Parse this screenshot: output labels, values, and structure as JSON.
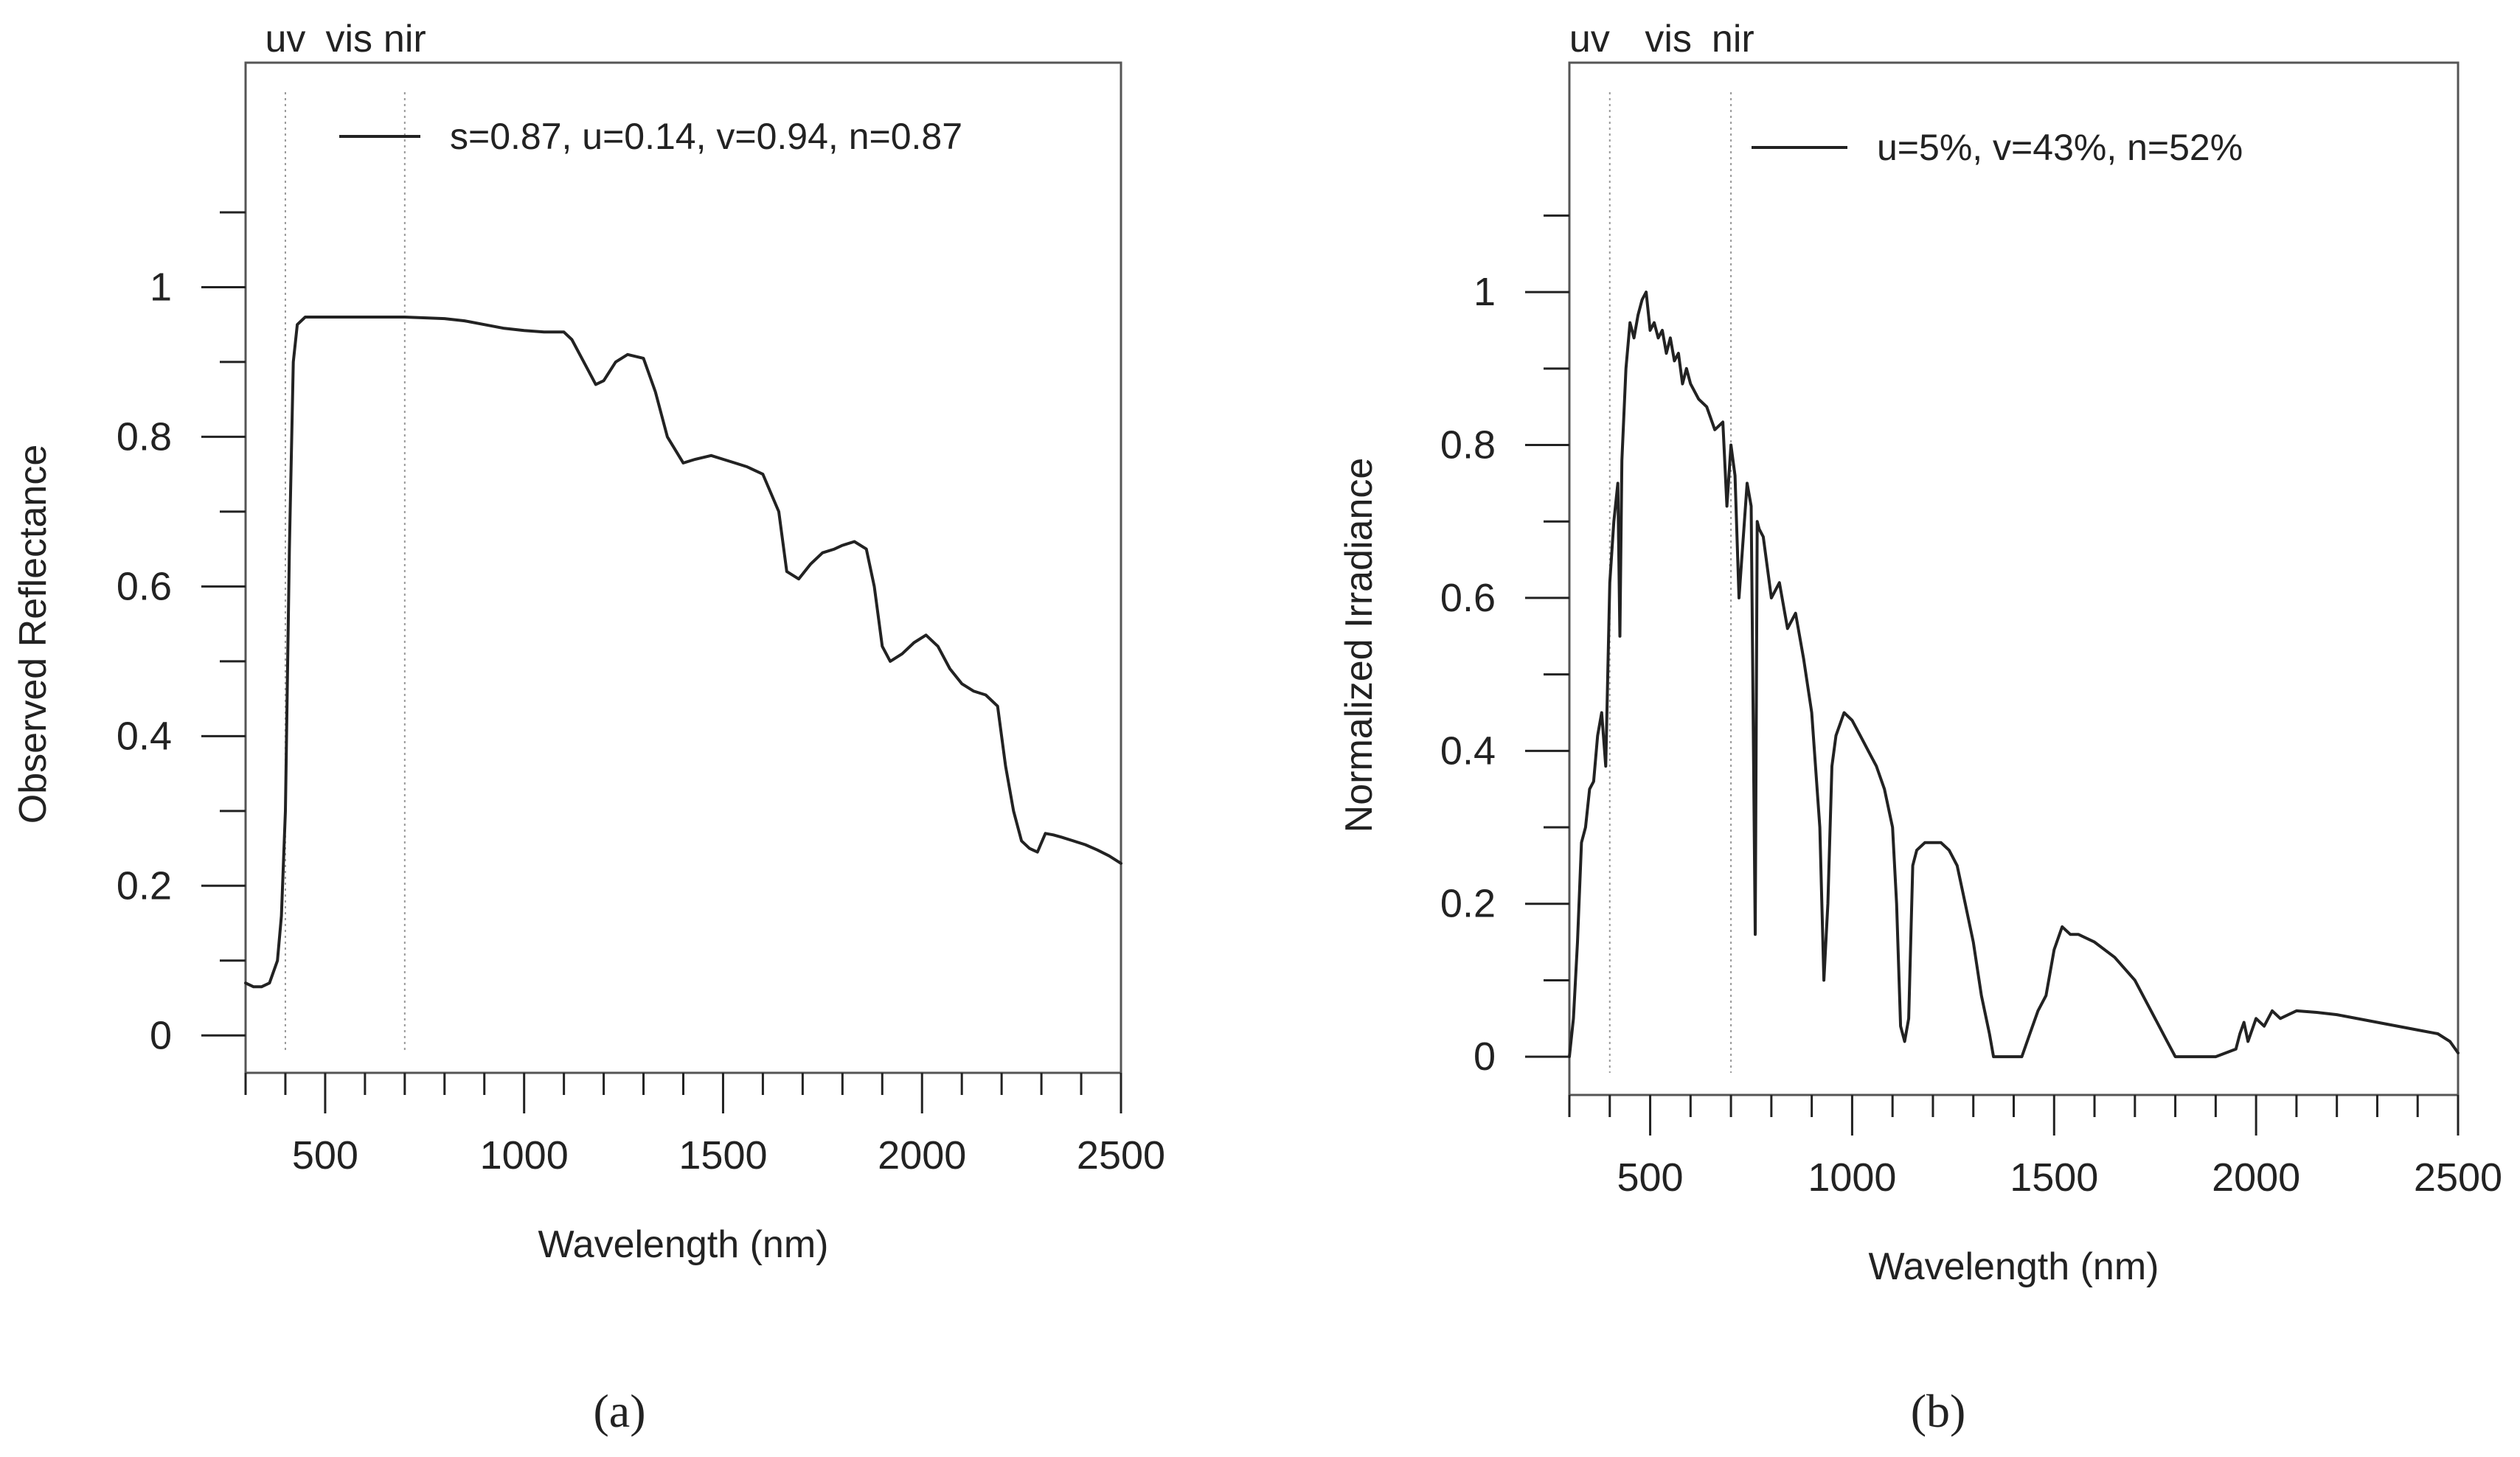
{
  "figure": {
    "panel_a_caption": "(a)",
    "panel_b_caption": "(b)",
    "accent_color": "#222222",
    "band_line_color": "#999999"
  },
  "chart_data": [
    {
      "type": "line",
      "id": "panel-a",
      "title": "",
      "xlabel": "Wavelength (nm)",
      "ylabel": "Observed Reflectance",
      "xlim": [
        300,
        2500
      ],
      "ylim": [
        -0.05,
        1.3
      ],
      "x_ticks": [
        500,
        1000,
        1500,
        2000,
        2500
      ],
      "y_ticks": [
        0,
        0.2,
        0.4,
        0.6,
        0.8,
        1
      ],
      "x_tick_labels": [
        "500",
        "1000",
        "1500",
        "2000",
        "2500"
      ],
      "y_tick_labels": [
        "0",
        "0.2",
        "0.4",
        "0.6",
        "0.8",
        "1"
      ],
      "x_minor_step": 100,
      "y_minor_step": 0.1,
      "bands": [
        {
          "label": "uv",
          "x": 400
        },
        {
          "label": "vis",
          "x": 560
        },
        {
          "label": "nir",
          "x": 700
        }
      ],
      "band_lines": [
        400,
        700
      ],
      "legend": "s=0.87, u=0.14, v=0.94, n=0.87",
      "series": [
        {
          "name": "s=0.87, u=0.14, v=0.94, n=0.87",
          "x": [
            300,
            320,
            340,
            360,
            380,
            390,
            400,
            410,
            420,
            430,
            450,
            500,
            600,
            700,
            800,
            850,
            900,
            950,
            1000,
            1050,
            1100,
            1120,
            1150,
            1180,
            1200,
            1230,
            1260,
            1300,
            1330,
            1360,
            1400,
            1430,
            1470,
            1500,
            1530,
            1560,
            1600,
            1640,
            1660,
            1690,
            1720,
            1750,
            1780,
            1800,
            1830,
            1860,
            1880,
            1900,
            1920,
            1950,
            1980,
            2010,
            2040,
            2070,
            2100,
            2130,
            2160,
            2190,
            2210,
            2230,
            2250,
            2270,
            2290,
            2310,
            2330,
            2350,
            2380,
            2410,
            2440,
            2470,
            2500
          ],
          "y": [
            0.07,
            0.065,
            0.065,
            0.07,
            0.1,
            0.16,
            0.3,
            0.65,
            0.9,
            0.95,
            0.96,
            0.96,
            0.96,
            0.96,
            0.958,
            0.955,
            0.95,
            0.945,
            0.942,
            0.94,
            0.94,
            0.93,
            0.9,
            0.87,
            0.875,
            0.9,
            0.91,
            0.905,
            0.86,
            0.8,
            0.765,
            0.77,
            0.775,
            0.77,
            0.765,
            0.76,
            0.75,
            0.7,
            0.62,
            0.61,
            0.63,
            0.645,
            0.65,
            0.655,
            0.66,
            0.65,
            0.6,
            0.52,
            0.5,
            0.51,
            0.525,
            0.535,
            0.52,
            0.49,
            0.47,
            0.46,
            0.455,
            0.44,
            0.36,
            0.3,
            0.26,
            0.25,
            0.245,
            0.27,
            0.268,
            0.265,
            0.26,
            0.255,
            0.248,
            0.24,
            0.23
          ]
        }
      ]
    },
    {
      "type": "line",
      "id": "panel-b",
      "title": "",
      "xlabel": "Wavelength (nm)",
      "ylabel": "Normalized Irradiance",
      "xlim": [
        300,
        2500
      ],
      "ylim": [
        -0.05,
        1.3
      ],
      "x_ticks": [
        500,
        1000,
        1500,
        2000,
        2500
      ],
      "y_ticks": [
        0,
        0.2,
        0.4,
        0.6,
        0.8,
        1
      ],
      "x_tick_labels": [
        "500",
        "1000",
        "1500",
        "2000",
        "2500"
      ],
      "y_tick_labels": [
        "0",
        "0.2",
        "0.4",
        "0.6",
        "0.8",
        "1"
      ],
      "x_minor_step": 100,
      "y_minor_step": 0.1,
      "bands": [
        {
          "label": "uv",
          "x": 350
        },
        {
          "label": "vis",
          "x": 545
        },
        {
          "label": "nir",
          "x": 705
        }
      ],
      "band_lines": [
        400,
        700
      ],
      "legend": "u=5%, v=43%, n=52%",
      "series": [
        {
          "name": "u=5%, v=43%, n=52%",
          "x": [
            300,
            310,
            320,
            330,
            340,
            350,
            360,
            370,
            380,
            390,
            400,
            410,
            420,
            425,
            430,
            440,
            450,
            460,
            470,
            480,
            490,
            500,
            510,
            520,
            530,
            540,
            550,
            560,
            570,
            580,
            590,
            600,
            620,
            640,
            660,
            680,
            690,
            700,
            710,
            720,
            740,
            750,
            760,
            765,
            770,
            780,
            800,
            820,
            840,
            860,
            880,
            900,
            920,
            930,
            940,
            950,
            960,
            980,
            1000,
            1020,
            1040,
            1060,
            1080,
            1100,
            1110,
            1120,
            1130,
            1140,
            1150,
            1160,
            1180,
            1200,
            1220,
            1240,
            1260,
            1280,
            1300,
            1320,
            1340,
            1350,
            1360,
            1380,
            1400,
            1420,
            1440,
            1460,
            1480,
            1500,
            1520,
            1540,
            1560,
            1600,
            1650,
            1700,
            1750,
            1780,
            1800,
            1820,
            1850,
            1900,
            1950,
            1960,
            1970,
            1980,
            2000,
            2020,
            2040,
            2060,
            2080,
            2100,
            2150,
            2200,
            2300,
            2400,
            2450,
            2480,
            2500
          ],
          "y": [
            0.0,
            0.05,
            0.15,
            0.28,
            0.3,
            0.35,
            0.36,
            0.42,
            0.45,
            0.38,
            0.62,
            0.7,
            0.75,
            0.55,
            0.78,
            0.9,
            0.96,
            0.94,
            0.97,
            0.99,
            1.0,
            0.95,
            0.96,
            0.94,
            0.95,
            0.92,
            0.94,
            0.91,
            0.92,
            0.88,
            0.9,
            0.88,
            0.86,
            0.85,
            0.82,
            0.83,
            0.72,
            0.8,
            0.76,
            0.6,
            0.75,
            0.72,
            0.16,
            0.7,
            0.69,
            0.68,
            0.6,
            0.62,
            0.56,
            0.58,
            0.52,
            0.45,
            0.3,
            0.1,
            0.2,
            0.38,
            0.42,
            0.45,
            0.44,
            0.42,
            0.4,
            0.38,
            0.35,
            0.3,
            0.2,
            0.04,
            0.02,
            0.05,
            0.25,
            0.27,
            0.28,
            0.28,
            0.28,
            0.27,
            0.25,
            0.2,
            0.15,
            0.08,
            0.03,
            0.0,
            0.0,
            0.0,
            0.0,
            0.0,
            0.03,
            0.06,
            0.08,
            0.14,
            0.17,
            0.16,
            0.16,
            0.15,
            0.13,
            0.1,
            0.05,
            0.02,
            0.0,
            0.0,
            0.0,
            0.0,
            0.01,
            0.03,
            0.045,
            0.02,
            0.05,
            0.04,
            0.06,
            0.05,
            0.055,
            0.06,
            0.058,
            0.055,
            0.045,
            0.035,
            0.03,
            0.02,
            0.005
          ]
        }
      ]
    }
  ]
}
